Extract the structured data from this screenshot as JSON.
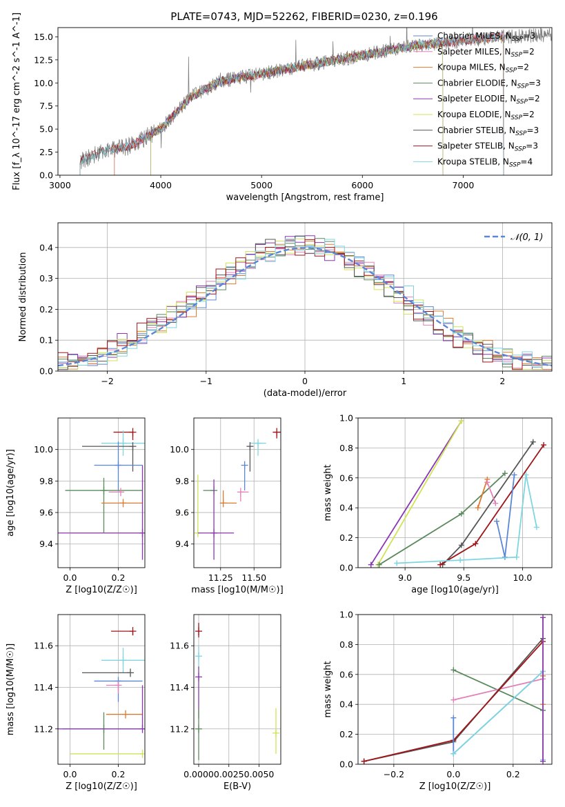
{
  "title": "PLATE=0743, MJD=52262, FIBERID=0230, z=0.196",
  "colors": {
    "Chabrier MILES": "#5b86d6",
    "Salpeter MILES": "#e380b8",
    "Kroupa MILES": "#e07a2e",
    "Chabrier ELODIE": "#5a8a5c",
    "Salpeter ELODIE": "#8a35b5",
    "Kroupa ELODIE": "#cfe354",
    "Chabrier STELIB": "#555555",
    "Salpeter STELIB": "#a01418",
    "Kroupa STELIB": "#7dd6df"
  },
  "chart_data": [
    {
      "id": "spectrum",
      "type": "line",
      "xlabel": "wavelength [Angstrom, rest frame]",
      "ylabel": "Flux [f_λ 10^-17 erg cm^-2 s^-1 A^-1]",
      "xlim": [
        2980,
        7880
      ],
      "ylim": [
        0,
        16
      ],
      "xticks": [
        3000,
        4000,
        5000,
        6000,
        7000
      ],
      "yticks": [
        0.0,
        2.5,
        5.0,
        7.5,
        10.0,
        12.5,
        15.0
      ],
      "legend_position": "top-right",
      "legend": [
        {
          "name": "Chabrier MILES",
          "label": "Chabrier MILES, N",
          "sub": "SSP",
          "suffix": "=3"
        },
        {
          "name": "Salpeter MILES",
          "label": "Salpeter MILES, N",
          "sub": "SSP",
          "suffix": "=2"
        },
        {
          "name": "Kroupa MILES",
          "label": "Kroupa MILES, N",
          "sub": "SSP",
          "suffix": "=2"
        },
        {
          "name": "Chabrier ELODIE",
          "label": "Chabrier ELODIE, N",
          "sub": "SSP",
          "suffix": "=3"
        },
        {
          "name": "Salpeter ELODIE",
          "label": "Salpeter ELODIE, N",
          "sub": "SSP",
          "suffix": "=2"
        },
        {
          "name": "Kroupa ELODIE",
          "label": "Kroupa ELODIE, N",
          "sub": "SSP",
          "suffix": "=2"
        },
        {
          "name": "Chabrier STELIB",
          "label": "Chabrier STELIB, N",
          "sub": "SSP",
          "suffix": "=3"
        },
        {
          "name": "Salpeter STELIB",
          "label": "Salpeter STELIB, N",
          "sub": "SSP",
          "suffix": "=3"
        },
        {
          "name": "Kroupa STELIB",
          "label": "Kroupa STELIB, N",
          "sub": "SSP",
          "suffix": "=4"
        }
      ],
      "data_curve": {
        "x": [
          3200,
          3400,
          3700,
          4000,
          4300,
          4600,
          5000,
          5500,
          6000,
          6500,
          7000,
          7400,
          7800
        ],
        "y": [
          1.5,
          2.5,
          3.2,
          5.0,
          8.5,
          10.2,
          11.0,
          12.0,
          13.0,
          14.0,
          14.6,
          15.0,
          15.2
        ]
      },
      "model_ranges": {
        "Chabrier MILES": [
          3540,
          7400
        ],
        "Salpeter MILES": [
          3540,
          7400
        ],
        "Kroupa MILES": [
          3540,
          7400
        ],
        "Chabrier ELODIE": [
          3900,
          6800
        ],
        "Salpeter ELODIE": [
          3900,
          6800
        ],
        "Kroupa ELODIE": [
          3900,
          6800
        ],
        "Chabrier STELIB": [
          3200,
          7400
        ],
        "Salpeter STELIB": [
          3200,
          7400
        ],
        "Kroupa STELIB": [
          3200,
          7400
        ]
      }
    },
    {
      "id": "residuals",
      "type": "histogram",
      "xlabel": "(data-model)/error",
      "ylabel": "Normed distribution",
      "xlim": [
        -2.5,
        2.5
      ],
      "ylim": [
        0,
        0.48
      ],
      "xticks": [
        -2,
        -1,
        0,
        1,
        2
      ],
      "yticks": [
        0.0,
        0.1,
        0.2,
        0.3,
        0.4
      ],
      "grid": true,
      "bin_width": 0.1,
      "legend_position": "top-right",
      "legend": "𝒩(0, 1)",
      "gaussian_color": "#5b86d6",
      "series": [
        {
          "name": "Chabrier MILES",
          "shift": 0.0,
          "noise": 0.03,
          "seed": 1
        },
        {
          "name": "Salpeter MILES",
          "shift": -0.03,
          "noise": 0.032,
          "seed": 2
        },
        {
          "name": "Kroupa MILES",
          "shift": 0.02,
          "noise": 0.03,
          "seed": 3
        },
        {
          "name": "Chabrier ELODIE",
          "shift": -0.05,
          "noise": 0.035,
          "seed": 4
        },
        {
          "name": "Salpeter ELODIE",
          "shift": -0.08,
          "noise": 0.038,
          "seed": 5
        },
        {
          "name": "Kroupa ELODIE",
          "shift": -0.06,
          "noise": 0.036,
          "seed": 6
        },
        {
          "name": "Chabrier STELIB",
          "shift": -0.1,
          "noise": 0.034,
          "seed": 7
        },
        {
          "name": "Salpeter STELIB",
          "shift": -0.12,
          "noise": 0.04,
          "seed": 8
        },
        {
          "name": "Kroupa STELIB",
          "shift": 0.05,
          "noise": 0.03,
          "seed": 9
        }
      ]
    },
    {
      "id": "age-vs-Z",
      "type": "errorbar",
      "xlabel": "Z [log10(Z/Z☉)]",
      "ylabel": "age [log10(age/yr)]",
      "xlim": [
        -0.05,
        0.31
      ],
      "ylim": [
        9.25,
        10.2
      ],
      "xticks": [
        0.0,
        0.2
      ],
      "yticks": [
        9.4,
        9.6,
        9.8,
        10.0
      ],
      "grid": true,
      "points": [
        {
          "name": "Salpeter STELIB",
          "x": 0.26,
          "y": 10.11,
          "xerr": [
            0.08,
            0.0
          ],
          "yerr": [
            0.05,
            0.0
          ]
        },
        {
          "name": "Kroupa STELIB",
          "x": 0.22,
          "y": 10.04,
          "xerr": [
            0.09,
            0.09
          ],
          "yerr": [
            0.08,
            0.08
          ]
        },
        {
          "name": "Chabrier STELIB",
          "x": 0.26,
          "y": 10.02,
          "xerr": [
            0.21,
            0.0
          ],
          "yerr": [
            0.16,
            0.0
          ]
        },
        {
          "name": "Chabrier MILES",
          "x": 0.2,
          "y": 9.9,
          "xerr": [
            0.1,
            0.1
          ],
          "yerr": [
            0.16,
            0.15
          ]
        },
        {
          "name": "Chabrier ELODIE",
          "x": 0.14,
          "y": 9.74,
          "xerr": [
            0.16,
            0.16
          ],
          "yerr": [
            0.27,
            0.08
          ]
        },
        {
          "name": "Salpeter MILES",
          "x": 0.21,
          "y": 9.73,
          "xerr": [
            0.05,
            0.0
          ],
          "yerr": [
            0.0,
            0.0
          ]
        },
        {
          "name": "Kroupa MILES",
          "x": 0.22,
          "y": 9.66,
          "xerr": [
            0.09,
            0.08
          ],
          "yerr": [
            0.0,
            0.0
          ]
        },
        {
          "name": "Kroupa ELODIE",
          "x": 0.3,
          "y": 9.47,
          "xerr": [
            0.3,
            0.0
          ],
          "yerr": [
            0.0,
            0.0
          ]
        },
        {
          "name": "Salpeter ELODIE",
          "x": 0.3,
          "y": 9.47,
          "xerr": [
            0.35,
            0.0
          ],
          "yerr": [
            0.17,
            0.43
          ]
        }
      ]
    },
    {
      "id": "age-vs-mass",
      "type": "errorbar",
      "xlabel": "mass [log10(M/M☉)]",
      "ylabel": "",
      "xlim": [
        11.05,
        11.7
      ],
      "ylim": [
        9.25,
        10.2
      ],
      "xticks": [
        11.25,
        11.5
      ],
      "yticks": [
        9.4,
        9.6,
        9.8,
        10.0
      ],
      "grid": true,
      "points": [
        {
          "name": "Salpeter STELIB",
          "x": 11.67,
          "y": 10.11,
          "xerr": [
            0.03,
            0.03
          ],
          "yerr": [
            0.04,
            0.0
          ]
        },
        {
          "name": "Kroupa STELIB",
          "x": 11.53,
          "y": 10.04,
          "xerr": [
            0.06,
            0.06
          ],
          "yerr": [
            0.08,
            0.0
          ]
        },
        {
          "name": "Chabrier STELIB",
          "x": 11.47,
          "y": 10.02,
          "xerr": [
            0.0,
            0.0
          ],
          "yerr": [
            0.16,
            0.0
          ]
        },
        {
          "name": "Chabrier MILES",
          "x": 11.43,
          "y": 9.9,
          "xerr": [
            0.0,
            0.0
          ],
          "yerr": [
            0.16,
            0.0
          ]
        },
        {
          "name": "Chabrier ELODIE",
          "x": 11.2,
          "y": 9.74,
          "xerr": [
            0.08,
            0.0
          ],
          "yerr": [
            0.0,
            0.0
          ]
        },
        {
          "name": "Salpeter MILES",
          "x": 11.4,
          "y": 9.73,
          "xerr": [
            0.0,
            0.06
          ],
          "yerr": [
            0.06,
            0.0
          ]
        },
        {
          "name": "Kroupa MILES",
          "x": 11.27,
          "y": 9.66,
          "xerr": [
            0.0,
            0.1
          ],
          "yerr": [
            0.0,
            0.08
          ]
        },
        {
          "name": "Kroupa ELODIE",
          "x": 11.08,
          "y": 9.47,
          "xerr": [
            0.0,
            0.0
          ],
          "yerr": [
            0.0,
            0.37
          ]
        },
        {
          "name": "Salpeter ELODIE",
          "x": 11.2,
          "y": 9.47,
          "xerr": [
            0.12,
            0.15
          ],
          "yerr": [
            0.17,
            0.34
          ]
        }
      ]
    },
    {
      "id": "weight-vs-age",
      "type": "line",
      "xlabel": "age [log10(age/yr)]",
      "ylabel": "mass weight",
      "xlim": [
        8.6,
        10.25
      ],
      "ylim": [
        0,
        1.0
      ],
      "xticks": [
        9.0,
        9.5,
        10.0
      ],
      "yticks": [
        0.0,
        0.2,
        0.4,
        0.6,
        0.8,
        1.0
      ],
      "grid": true,
      "series": [
        {
          "name": "Salpeter ELODIE",
          "x": [
            8.71,
            9.48
          ],
          "y": [
            0.02,
            0.98
          ]
        },
        {
          "name": "Kroupa ELODIE",
          "x": [
            8.77,
            9.48
          ],
          "y": [
            0.02,
            0.98
          ]
        },
        {
          "name": "Chabrier ELODIE",
          "x": [
            8.78,
            9.48,
            9.85
          ],
          "y": [
            0.02,
            0.36,
            0.63
          ]
        },
        {
          "name": "Chabrier STELIB",
          "x": [
            9.32,
            9.48,
            10.09
          ],
          "y": [
            0.02,
            0.15,
            0.84
          ]
        },
        {
          "name": "Salpeter STELIB",
          "x": [
            9.3,
            9.6,
            10.18
          ],
          "y": [
            0.02,
            0.16,
            0.82
          ]
        },
        {
          "name": "Kroupa MILES",
          "x": [
            9.62,
            9.7
          ],
          "y": [
            0.4,
            0.59
          ]
        },
        {
          "name": "Salpeter MILES",
          "x": [
            9.7,
            9.77
          ],
          "y": [
            0.57,
            0.43
          ]
        },
        {
          "name": "Chabrier MILES",
          "x": [
            9.78,
            9.85,
            9.93
          ],
          "y": [
            0.31,
            0.07,
            0.62
          ]
        },
        {
          "name": "Kroupa STELIB",
          "x": [
            8.93,
            9.47,
            9.95,
            10.03,
            10.12
          ],
          "y": [
            0.03,
            0.05,
            0.07,
            0.62,
            0.27
          ]
        }
      ]
    },
    {
      "id": "mass-vs-Z",
      "type": "errorbar",
      "xlabel": "Z [log10(Z/Z☉)]",
      "ylabel": "mass [log10(M/M☉)]",
      "xlim": [
        -0.05,
        0.31
      ],
      "ylim": [
        11.03,
        11.75
      ],
      "xticks": [
        0.0,
        0.2
      ],
      "yticks": [
        11.2,
        11.4,
        11.6
      ],
      "grid": true,
      "points": [
        {
          "name": "Salpeter STELIB",
          "x": 0.26,
          "y": 11.67,
          "xerr": [
            0.09,
            0.0
          ],
          "yerr": [
            0.02,
            0.0
          ]
        },
        {
          "name": "Kroupa STELIB",
          "x": 0.22,
          "y": 11.53,
          "xerr": [
            0.09,
            0.09
          ],
          "yerr": [
            0.06,
            0.06
          ]
        },
        {
          "name": "Chabrier STELIB",
          "x": 0.25,
          "y": 11.47,
          "xerr": [
            0.2,
            0.0
          ],
          "yerr": [
            0.0,
            0.0
          ]
        },
        {
          "name": "Chabrier MILES",
          "x": 0.2,
          "y": 11.43,
          "xerr": [
            0.1,
            0.1
          ],
          "yerr": [
            0.1,
            0.0
          ]
        },
        {
          "name": "Salpeter MILES",
          "x": 0.2,
          "y": 11.41,
          "xerr": [
            0.05,
            0.0
          ],
          "yerr": [
            0.04,
            0.0
          ]
        },
        {
          "name": "Kroupa MILES",
          "x": 0.23,
          "y": 11.27,
          "xerr": [
            0.08,
            0.07
          ],
          "yerr": [
            0.0,
            0.0
          ]
        },
        {
          "name": "Chabrier ELODIE",
          "x": 0.14,
          "y": 11.2,
          "xerr": [
            0.17,
            0.17
          ],
          "yerr": [
            0.1,
            0.08
          ]
        },
        {
          "name": "Salpeter ELODIE",
          "x": 0.3,
          "y": 11.2,
          "xerr": [
            0.35,
            0.0
          ],
          "yerr": [
            0.0,
            0.21
          ]
        },
        {
          "name": "Kroupa ELODIE",
          "x": 0.3,
          "y": 11.08,
          "xerr": [
            0.3,
            0.0
          ],
          "yerr": [
            0.0,
            0.0
          ]
        }
      ]
    },
    {
      "id": "mass-vs-ebv",
      "type": "errorbar",
      "xlabel": "E(B-V)",
      "ylabel": "",
      "xlim": [
        -0.0004,
        0.0068
      ],
      "ylim": [
        11.03,
        11.75
      ],
      "xticks": [
        0.0,
        0.0025,
        0.005
      ],
      "xticklabels": [
        "0.0000",
        "0.0025",
        "0.0050"
      ],
      "yticks": [
        11.2,
        11.4,
        11.6
      ],
      "grid": true,
      "points": [
        {
          "name": "Salpeter STELIB",
          "x": 0.0,
          "y": 11.67,
          "xerr": [
            0,
            0
          ],
          "yerr": [
            0.03,
            0.04
          ]
        },
        {
          "name": "Kroupa STELIB",
          "x": 0.0,
          "y": 11.55,
          "xerr": [
            0,
            0
          ],
          "yerr": [
            0.06,
            0.05
          ]
        },
        {
          "name": "Salpeter ELODIE",
          "x": 0.0,
          "y": 11.45,
          "xerr": [
            0,
            0
          ],
          "yerr": [
            0.2,
            0.05
          ]
        },
        {
          "name": "Chabrier ELODIE",
          "x": 0.0,
          "y": 11.2,
          "xerr": [
            0,
            0
          ],
          "yerr": [
            0.15,
            0.1
          ]
        },
        {
          "name": "Kroupa ELODIE",
          "x": 0.0064,
          "y": 11.18,
          "xerr": [
            0,
            0
          ],
          "yerr": [
            0.1,
            0.12
          ]
        }
      ]
    },
    {
      "id": "weight-vs-Z",
      "type": "line",
      "xlabel": "Z [log10(Z/Z☉)]",
      "ylabel": "mass weight",
      "xlim": [
        -0.32,
        0.33
      ],
      "ylim": [
        0,
        1.0
      ],
      "xticks": [
        -0.2,
        0.0,
        0.2
      ],
      "yticks": [
        0.0,
        0.2,
        0.4,
        0.6,
        0.8,
        1.0
      ],
      "grid": true,
      "series": [
        {
          "name": "Chabrier ELODIE",
          "x": [
            0.0,
            0.3
          ],
          "y": [
            0.63,
            0.36
          ]
        },
        {
          "name": "Salpeter MILES",
          "x": [
            0.0,
            0.3
          ],
          "y": [
            0.43,
            0.57
          ]
        },
        {
          "name": "Chabrier STELIB",
          "x": [
            -0.3,
            0.0,
            0.3
          ],
          "y": [
            0.02,
            0.15,
            0.84
          ]
        },
        {
          "name": "Salpeter STELIB",
          "x": [
            -0.3,
            0.0,
            0.3
          ],
          "y": [
            0.02,
            0.16,
            0.82
          ]
        },
        {
          "name": "Chabrier MILES",
          "x": [
            0.0,
            0.0,
            0.3
          ],
          "y": [
            0.31,
            0.07,
            0.62
          ]
        },
        {
          "name": "Kroupa STELIB",
          "x": [
            0.0,
            0.3,
            0.3
          ],
          "y": [
            0.07,
            0.62,
            0.03
          ]
        },
        {
          "name": "Kroupa MILES",
          "x": [
            0.3,
            0.3
          ],
          "y": [
            0.4,
            0.59
          ]
        },
        {
          "name": "Kroupa ELODIE",
          "x": [
            0.3,
            0.3
          ],
          "y": [
            0.02,
            0.98
          ]
        },
        {
          "name": "Salpeter ELODIE",
          "x": [
            0.3,
            0.3
          ],
          "y": [
            0.02,
            0.98
          ]
        }
      ]
    }
  ]
}
